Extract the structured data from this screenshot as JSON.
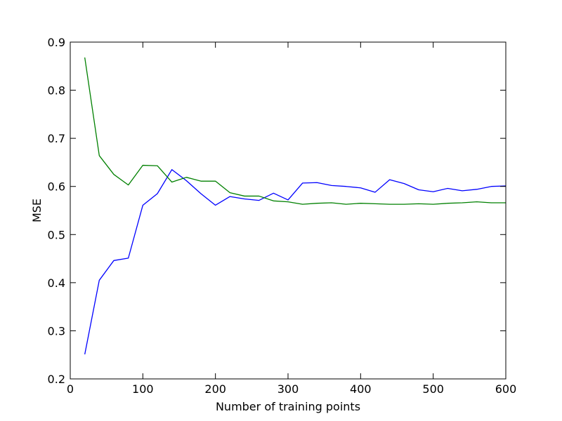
{
  "chart_data": {
    "type": "line",
    "title": "",
    "xlabel": "Number of training points",
    "ylabel": "MSE",
    "xlim": [
      0,
      600
    ],
    "ylim": [
      0.2,
      0.9
    ],
    "xticks": [
      0,
      100,
      200,
      300,
      400,
      500,
      600
    ],
    "xtick_labels": [
      "0",
      "100",
      "200",
      "300",
      "400",
      "500",
      "600"
    ],
    "yticks": [
      0.2,
      0.3,
      0.4,
      0.5,
      0.6,
      0.7,
      0.8,
      0.9
    ],
    "ytick_labels": [
      "0.2",
      "0.3",
      "0.4",
      "0.5",
      "0.6",
      "0.7",
      "0.8",
      "0.9"
    ],
    "grid": false,
    "legend": "none",
    "x": [
      20,
      40,
      60,
      80,
      100,
      120,
      140,
      160,
      180,
      200,
      220,
      240,
      260,
      280,
      300,
      320,
      340,
      360,
      380,
      400,
      420,
      440,
      460,
      480,
      500,
      520,
      540,
      560,
      580,
      600
    ],
    "series": [
      {
        "color": "#0000ff",
        "values": [
          0.251,
          0.405,
          0.446,
          0.451,
          0.561,
          0.585,
          0.635,
          0.612,
          0.585,
          0.561,
          0.579,
          0.574,
          0.571,
          0.586,
          0.572,
          0.607,
          0.608,
          0.602,
          0.6,
          0.597,
          0.588,
          0.614,
          0.606,
          0.593,
          0.589,
          0.596,
          0.591,
          0.594,
          0.6,
          0.601
        ]
      },
      {
        "color": "#008000",
        "values": [
          0.868,
          0.664,
          0.625,
          0.603,
          0.644,
          0.643,
          0.609,
          0.619,
          0.611,
          0.611,
          0.587,
          0.58,
          0.58,
          0.57,
          0.568,
          0.563,
          0.565,
          0.566,
          0.563,
          0.565,
          0.564,
          0.563,
          0.563,
          0.564,
          0.563,
          0.565,
          0.566,
          0.568,
          0.566,
          0.566
        ]
      }
    ]
  }
}
